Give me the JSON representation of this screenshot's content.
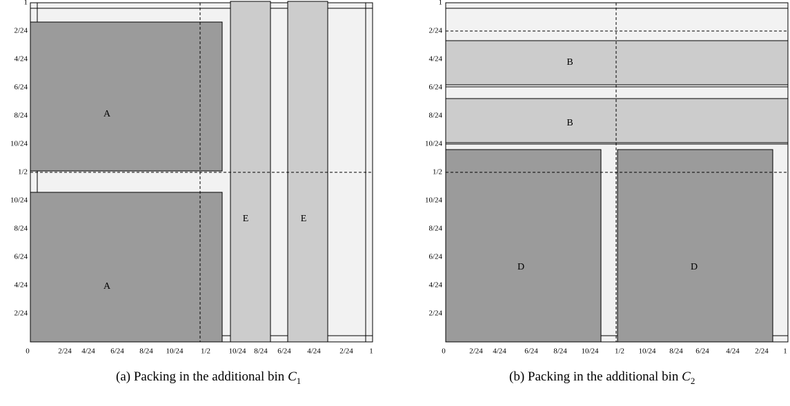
{
  "colors": {
    "bin_bg": "#f2f2f2",
    "dark": "#9b9b9b",
    "light": "#cccccc",
    "line": "#000000"
  },
  "panels": [
    {
      "id": "a",
      "caption_prefix": "(a)  Packing in the additional bin ",
      "caption_var": "C",
      "caption_sub": "1",
      "y_ticks": [
        "1",
        "2/24",
        "4/24",
        "6/24",
        "8/24",
        "10/24",
        "1/2",
        "10/24",
        "8/24",
        "6/24",
        "4/24",
        "2/24"
      ],
      "x_ticks": [
        "0",
        "2/24",
        "4/24",
        "6/24",
        "8/24",
        "10/24",
        "1/2",
        "10/24",
        "8/24",
        "6/24",
        "4/24",
        "2/24",
        "1"
      ],
      "rect_labels": [
        "A",
        "A",
        "E",
        "E"
      ]
    },
    {
      "id": "b",
      "caption_prefix": "(b)  Packing in the additional bin ",
      "caption_var": "C",
      "caption_sub": "2",
      "y_ticks": [
        "1",
        "2/24",
        "4/24",
        "6/24",
        "8/24",
        "10/24",
        "1/2",
        "10/24",
        "8/24",
        "6/24",
        "4/24",
        "2/24"
      ],
      "x_ticks": [
        "0",
        "2/24",
        "4/24",
        "6/24",
        "8/24",
        "10/24",
        "1/2",
        "10/24",
        "8/24",
        "6/24",
        "4/24",
        "2/24",
        "1"
      ],
      "rect_labels": [
        "B",
        "B",
        "D",
        "D"
      ]
    }
  ]
}
